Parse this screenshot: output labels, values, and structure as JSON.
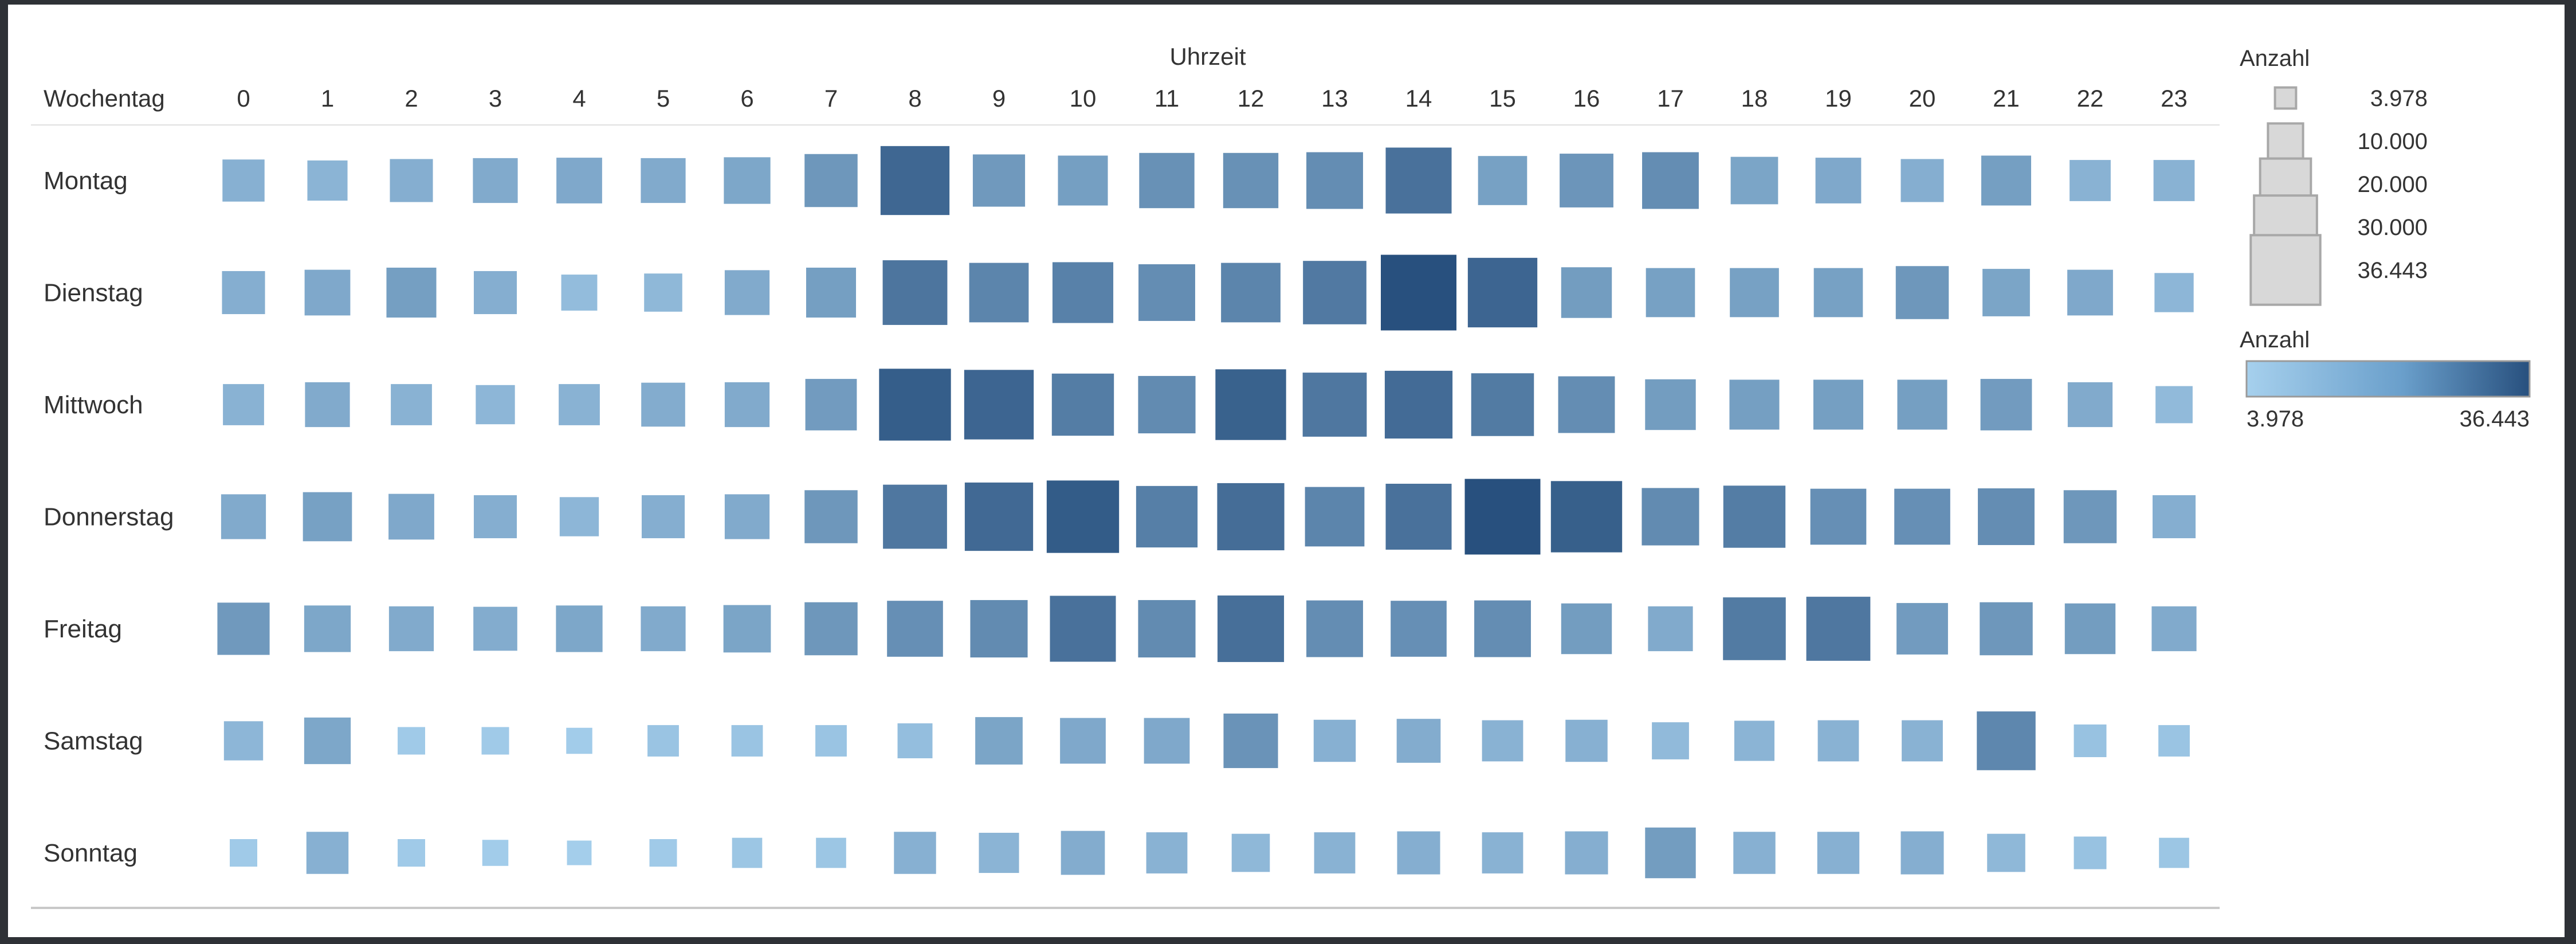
{
  "chart_data": {
    "type": "heatmap",
    "title": "",
    "column_title": "Uhrzeit",
    "row_header": "Wochentag",
    "hours": [
      "0",
      "1",
      "2",
      "3",
      "4",
      "5",
      "6",
      "7",
      "8",
      "9",
      "10",
      "11",
      "12",
      "13",
      "14",
      "15",
      "16",
      "17",
      "18",
      "19",
      "20",
      "21",
      "22",
      "23"
    ],
    "days": [
      "Montag",
      "Dienstag",
      "Mittwoch",
      "Donnerstag",
      "Freitag",
      "Samstag",
      "Sonntag"
    ],
    "values": [
      [
        12000,
        11000,
        12500,
        13500,
        14000,
        13500,
        14500,
        18500,
        30500,
        18000,
        16500,
        20000,
        20000,
        21000,
        28000,
        16000,
        19000,
        21000,
        15000,
        14000,
        12500,
        16500,
        11500,
        11500
      ],
      [
        12500,
        14000,
        16500,
        12500,
        9000,
        10000,
        13500,
        16500,
        27000,
        23000,
        24000,
        21000,
        23000,
        26000,
        36443,
        31000,
        17000,
        16000,
        16000,
        16000,
        18500,
        15000,
        14000,
        10500
      ],
      [
        11500,
        13500,
        11500,
        10500,
        11500,
        13000,
        13500,
        17500,
        33000,
        31000,
        25000,
        21500,
        32000,
        26500,
        29500,
        25500,
        21000,
        17000,
        16500,
        16500,
        16500,
        17500,
        13500,
        9500
      ],
      [
        13500,
        16000,
        14000,
        12500,
        10500,
        12500,
        13500,
        18500,
        26500,
        30000,
        33500,
        24500,
        29000,
        23000,
        28000,
        36443,
        32500,
        21500,
        25000,
        20500,
        20500,
        21000,
        18500,
        12500
      ],
      [
        18000,
        14500,
        13500,
        13000,
        14500,
        13500,
        15000,
        18500,
        20500,
        21500,
        28000,
        21500,
        28500,
        21000,
        20500,
        21000,
        17000,
        13500,
        25500,
        26500,
        17500,
        18500,
        17000,
        13500
      ],
      [
        10500,
        14500,
        5500,
        5500,
        5000,
        7000,
        7000,
        7000,
        8500,
        15000,
        14000,
        14000,
        19500,
        12000,
        13000,
        11500,
        12000,
        9500,
        11000,
        11500,
        11500,
        22500,
        7500,
        7000
      ],
      [
        5500,
        12000,
        5500,
        5000,
        4500,
        5500,
        6500,
        6500,
        12000,
        11000,
        13000,
        11500,
        10000,
        11500,
        12500,
        11500,
        12500,
        17000,
        12000,
        12000,
        12500,
        10000,
        7500,
        6500
      ]
    ],
    "size_legend": {
      "title": "Anzahl",
      "entries": [
        3978,
        10000,
        20000,
        30000,
        36443
      ],
      "labels": [
        "3.978",
        "10.000",
        "20.000",
        "30.000",
        "36.443"
      ]
    },
    "color_legend": {
      "title": "Anzahl",
      "min_label": "3.978",
      "max_label": "36.443",
      "min": 3978,
      "max": 36443
    },
    "colors": {
      "low": "#a6d0ed",
      "high": "#28507e",
      "size_legend_fill": "#d8d8d8",
      "size_legend_stroke": "#a8a8a8"
    }
  }
}
